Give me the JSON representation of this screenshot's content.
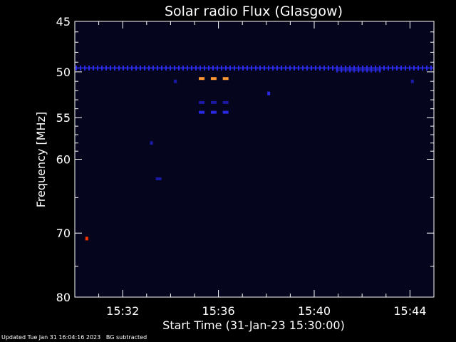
{
  "footer": {
    "updated": "Updated Tue Jan 31 16:04:16 2023",
    "note": "BG subtracted"
  },
  "chart_data": {
    "type": "heatmap",
    "title": "Solar radio Flux (Glasgow)",
    "xlabel": "Start Time (31-Jan-23 15:30:00)",
    "ylabel": "Frequency [MHz]",
    "x_unit": "minutes after 15:30",
    "xlim": [
      0,
      15
    ],
    "ylim": [
      45,
      80
    ],
    "y_scale": "log",
    "y_inverted": true,
    "grid": false,
    "x_ticks": [
      {
        "value": 2,
        "label": "15:32"
      },
      {
        "value": 6,
        "label": "15:36"
      },
      {
        "value": 10,
        "label": "15:40"
      },
      {
        "value": 14,
        "label": "15:44"
      }
    ],
    "y_ticks": [
      {
        "value": 45,
        "label": "45"
      },
      {
        "value": 50,
        "label": "50"
      },
      {
        "value": 55,
        "label": "55"
      },
      {
        "value": 60,
        "label": "60"
      },
      {
        "value": 70,
        "label": "70"
      },
      {
        "value": 80,
        "label": "80"
      }
    ],
    "y_minor_ticks": [
      46,
      47,
      48,
      49,
      51,
      52,
      53,
      54,
      56,
      57,
      58,
      59,
      65,
      75
    ],
    "background_color": "#05051e",
    "colors": {
      "weak": "#1a1aa6",
      "medium": "#2a2ae6",
      "strong": "#ff9933",
      "peak": "#ff3300"
    },
    "features": [
      {
        "kind": "band",
        "freq": 49.6,
        "t_start": 0,
        "t_end": 15,
        "level": "medium"
      },
      {
        "kind": "band",
        "freq": 49.8,
        "t_start": 10.9,
        "t_end": 12.8,
        "level": "medium"
      },
      {
        "kind": "dash",
        "freq": 50.7,
        "t": 5.3,
        "level": "strong"
      },
      {
        "kind": "dash",
        "freq": 50.7,
        "t": 5.8,
        "level": "strong"
      },
      {
        "kind": "dash",
        "freq": 50.7,
        "t": 6.3,
        "level": "strong"
      },
      {
        "kind": "dash",
        "freq": 53.3,
        "t": 5.3,
        "level": "weak"
      },
      {
        "kind": "dash",
        "freq": 53.3,
        "t": 5.8,
        "level": "weak"
      },
      {
        "kind": "dash",
        "freq": 53.3,
        "t": 6.3,
        "level": "weak"
      },
      {
        "kind": "dash",
        "freq": 54.4,
        "t": 5.3,
        "level": "medium"
      },
      {
        "kind": "dash",
        "freq": 54.4,
        "t": 5.8,
        "level": "medium"
      },
      {
        "kind": "dash",
        "freq": 54.4,
        "t": 6.3,
        "level": "medium"
      },
      {
        "kind": "dot",
        "freq": 52.3,
        "t": 8.1,
        "level": "medium"
      },
      {
        "kind": "dot",
        "freq": 51.0,
        "t": 4.2,
        "level": "weak"
      },
      {
        "kind": "dot",
        "freq": 51.0,
        "t": 14.1,
        "level": "weak"
      },
      {
        "kind": "dot",
        "freq": 58.0,
        "t": 3.2,
        "level": "weak"
      },
      {
        "kind": "dash",
        "freq": 62.5,
        "t": 3.5,
        "level": "weak"
      },
      {
        "kind": "dot",
        "freq": 70.8,
        "t": 0.5,
        "level": "peak"
      }
    ]
  }
}
